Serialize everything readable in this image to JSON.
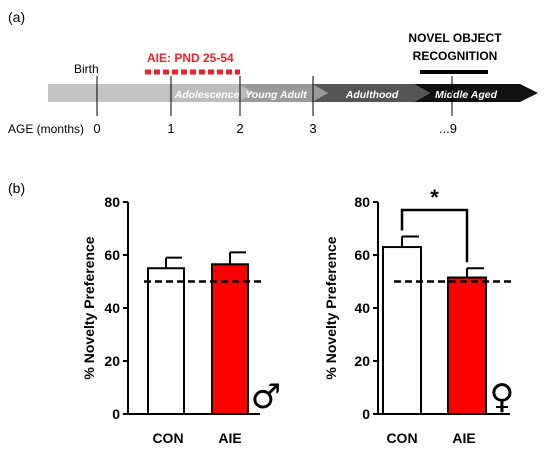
{
  "panel_a": {
    "label": "(a)",
    "birth_label": "Birth",
    "aie_label": "AIE: PND 25-54",
    "task_label_line1": "NOVEL OBJECT",
    "task_label_line2": "RECOGNITION",
    "age_axis_label": "AGE (months)",
    "age_ticks": [
      "0",
      "1",
      "2",
      "3",
      "...9"
    ],
    "stages": [
      {
        "name": "Adolescence",
        "color": "#bdbdbd"
      },
      {
        "name": "Young Adult",
        "color": "#9a9a9a"
      },
      {
        "name": "Adulthood",
        "color": "#555555"
      },
      {
        "name": "Middle Aged",
        "color": "#111111"
      }
    ],
    "first_segment_color": "#c4c4c4",
    "aie_color": "#e8232a"
  },
  "panel_b": {
    "label": "(b)"
  },
  "chart_data": [
    {
      "type": "bar",
      "panel": "male",
      "categories": [
        "CON",
        "AIE"
      ],
      "values": [
        55,
        56.5
      ],
      "errors": [
        4,
        4.5
      ],
      "bar_colors": [
        "#ffffff",
        "#ff0000"
      ],
      "ylabel": "% Novelty  Preference",
      "ylim": [
        0,
        80
      ],
      "yticks": [
        "0",
        "20",
        "40",
        "60",
        "80"
      ],
      "reference_line": 50,
      "sex_symbol": "♂"
    },
    {
      "type": "bar",
      "panel": "female",
      "categories": [
        "CON",
        "AIE"
      ],
      "values": [
        63,
        51.5
      ],
      "errors": [
        4,
        3.5
      ],
      "bar_colors": [
        "#ffffff",
        "#ff0000"
      ],
      "ylabel": "% Novelty  Preference",
      "ylim": [
        0,
        80
      ],
      "yticks": [
        "0",
        "20",
        "40",
        "60",
        "80"
      ],
      "reference_line": 50,
      "significance": "*",
      "sex_symbol": "♀"
    }
  ]
}
